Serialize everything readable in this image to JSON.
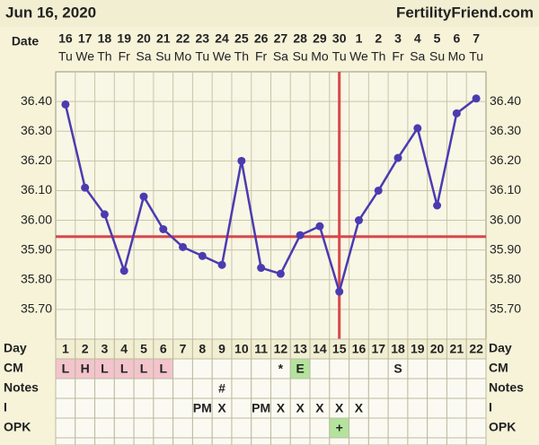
{
  "header": {
    "date": "Jun 16, 2020",
    "site": "FertilityFriend.com"
  },
  "chart_data": {
    "type": "line",
    "date_label": "Date",
    "categories": [
      "16",
      "17",
      "18",
      "19",
      "20",
      "21",
      "22",
      "23",
      "24",
      "25",
      "26",
      "27",
      "28",
      "29",
      "30",
      "1",
      "2",
      "3",
      "4",
      "5",
      "6",
      "7"
    ],
    "weekdays": [
      "Tu",
      "We",
      "Th",
      "Fr",
      "Sa",
      "Su",
      "Mo",
      "Tu",
      "We",
      "Th",
      "Fr",
      "Sa",
      "Su",
      "Mo",
      "Tu",
      "We",
      "Th",
      "Fr",
      "Sa",
      "Su",
      "Mo",
      "Tu"
    ],
    "values": [
      36.39,
      36.11,
      36.02,
      35.83,
      36.08,
      35.97,
      35.91,
      35.88,
      35.85,
      36.2,
      35.84,
      35.82,
      35.95,
      35.98,
      35.76,
      36.0,
      36.1,
      36.21,
      36.31,
      36.05,
      36.36,
      36.41
    ],
    "color": "#4b3bb0",
    "unconnected_days": [
      1
    ],
    "ylim": [
      35.6,
      36.5
    ],
    "yticks": [
      {
        "value": 35.7,
        "label": "35.70"
      },
      {
        "value": 35.8,
        "label": "35.80"
      },
      {
        "value": 35.9,
        "label": "35.90"
      },
      {
        "value": 36.0,
        "label": "36.00"
      },
      {
        "value": 36.1,
        "label": "36.10"
      },
      {
        "value": 36.2,
        "label": "36.20"
      },
      {
        "value": 36.3,
        "label": "36.30"
      },
      {
        "value": 36.4,
        "label": "36.40"
      }
    ],
    "grid": true,
    "coverline": 35.945,
    "ovulation_day": 15,
    "marker_line_color": "#d9474a"
  },
  "table": {
    "rows": [
      {
        "label": "Day",
        "cells": [
          1,
          2,
          3,
          4,
          5,
          6,
          7,
          8,
          9,
          10,
          11,
          12,
          13,
          14,
          15,
          16,
          17,
          18,
          19,
          20,
          21,
          22
        ]
      },
      {
        "label": "CM",
        "cells": [
          "L",
          "H",
          "L",
          "L",
          "L",
          "L",
          null,
          null,
          null,
          null,
          null,
          "*",
          "E",
          null,
          null,
          null,
          null,
          "S",
          null,
          null,
          null,
          null
        ],
        "fills": [
          "#f3c4cc",
          "#f3c4cc",
          "#f3c4cc",
          "#f3c4cc",
          "#f3c4cc",
          "#f3c4cc",
          null,
          null,
          null,
          null,
          null,
          null,
          "#b3e39c",
          null,
          null,
          null,
          null,
          null,
          null,
          null,
          null,
          null
        ]
      },
      {
        "label": "Notes",
        "cells": [
          null,
          null,
          null,
          null,
          null,
          null,
          null,
          null,
          "#",
          null,
          null,
          null,
          null,
          null,
          null,
          null,
          null,
          null,
          null,
          null,
          null,
          null
        ]
      },
      {
        "label": "I",
        "cells": [
          null,
          null,
          null,
          null,
          null,
          null,
          null,
          "PM",
          "X",
          null,
          "PM",
          "X",
          "X",
          "X",
          "X",
          "X",
          null,
          null,
          null,
          null,
          null,
          null
        ]
      },
      {
        "label": "OPK",
        "cells": [
          null,
          null,
          null,
          null,
          null,
          null,
          null,
          null,
          null,
          null,
          null,
          null,
          null,
          null,
          "+",
          null,
          null,
          null,
          null,
          null,
          null,
          null
        ],
        "fills": [
          null,
          null,
          null,
          null,
          null,
          null,
          null,
          null,
          null,
          null,
          null,
          null,
          null,
          null,
          "#b3e39c",
          null,
          null,
          null,
          null,
          null,
          null,
          null
        ]
      }
    ]
  }
}
